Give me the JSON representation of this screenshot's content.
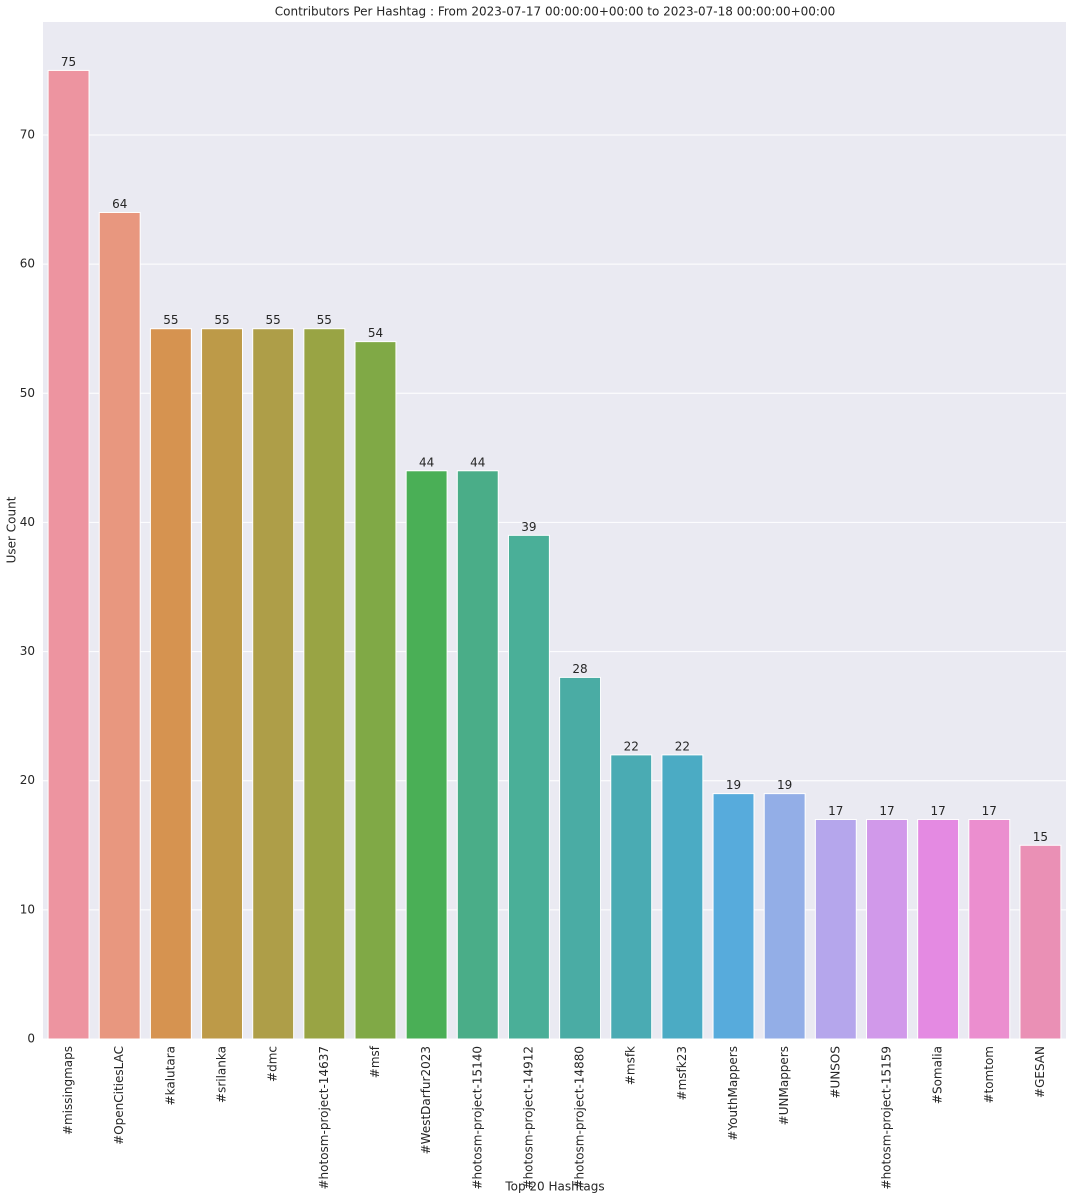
{
  "chart_data": {
    "type": "bar",
    "title": "Contributors Per Hashtag : From 2023-07-17 00:00:00+00:00 to 2023-07-18 00:00:00+00:00",
    "x_label": "Top 20 Hashtags",
    "y_label": "User Count",
    "categories": [
      "#missingmaps",
      "#OpenCitiesLAC",
      "#kalutara",
      "#srilanka",
      "#dmc",
      "#hotosm-project-14637",
      "#msf",
      "#WestDarfur2023",
      "#hotosm-project-15140",
      "#hotosm-project-14912",
      "#hotosm-project-14880",
      "#msfk",
      "#msfk23",
      "#YouthMappers",
      "#UNMappers",
      "#UNSOS",
      "#hotosm-project-15159",
      "#Somalia",
      "#tomtom",
      "#GESAN"
    ],
    "values": [
      75,
      64,
      55,
      55,
      55,
      55,
      54,
      44,
      44,
      39,
      28,
      22,
      22,
      19,
      19,
      17,
      17,
      17,
      17,
      15
    ],
    "colors": [
      "#ed94a0",
      "#e8977f",
      "#d69350",
      "#bd9a48",
      "#ae9e48",
      "#99a444",
      "#80a946",
      "#4aaf56",
      "#4aad88",
      "#4aaf98",
      "#4aaca4",
      "#4aabb3",
      "#4babc4",
      "#57abdc",
      "#93aee7",
      "#b5a6ec",
      "#d199ea",
      "#e48ae2",
      "#eb8ecf",
      "#ea90b5"
    ],
    "ylim": [
      0,
      78.75
    ],
    "yticks": [
      0,
      10,
      20,
      30,
      40,
      50,
      60,
      70
    ],
    "grid": true
  }
}
